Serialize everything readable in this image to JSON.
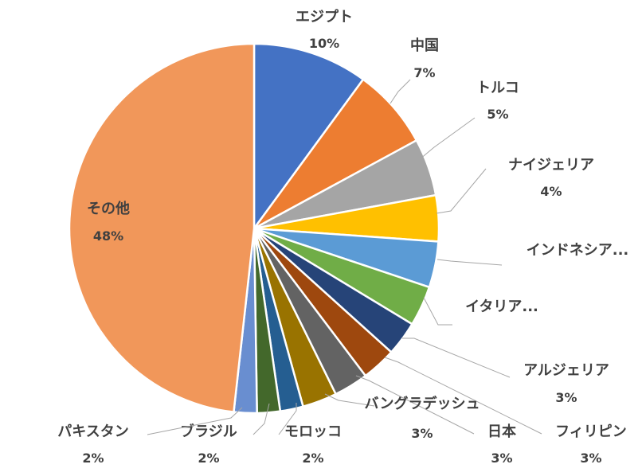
{
  "chart_data": {
    "type": "pie",
    "slices": [
      {
        "label": "エジプト",
        "value": 10,
        "pct_label": "10%",
        "color": "#4472C4"
      },
      {
        "label": "中国",
        "value": 7,
        "pct_label": "7%",
        "color": "#ED7D31"
      },
      {
        "label": "トルコ",
        "value": 5,
        "pct_label": "5%",
        "color": "#A5A5A5"
      },
      {
        "label": "ナイジェリア",
        "value": 4,
        "pct_label": "4%",
        "color": "#FFC000"
      },
      {
        "label": "インドネシア...",
        "value": 4,
        "pct_label": "",
        "color": "#5B9BD5"
      },
      {
        "label": "イタリア...",
        "value": 3.5,
        "pct_label": "",
        "color": "#70AD47"
      },
      {
        "label": "アルジェリア",
        "value": 3,
        "pct_label": "3%",
        "color": "#264478"
      },
      {
        "label": "フィリピン",
        "value": 3,
        "pct_label": "3%",
        "color": "#9E480E"
      },
      {
        "label": "日本",
        "value": 3,
        "pct_label": "3%",
        "color": "#636363"
      },
      {
        "label": "バングラデッシュ",
        "value": 3,
        "pct_label": "3%",
        "color": "#997300"
      },
      {
        "label": "モロッコ",
        "value": 2,
        "pct_label": "2%",
        "color": "#255E91"
      },
      {
        "label": "ブラジル",
        "value": 2,
        "pct_label": "2%",
        "color": "#43682B"
      },
      {
        "label": "パキスタン",
        "value": 2,
        "pct_label": "2%",
        "color": "#698ED0"
      },
      {
        "label": "その他",
        "value": 48,
        "pct_label": "48%",
        "color": "#F1975A"
      }
    ]
  }
}
